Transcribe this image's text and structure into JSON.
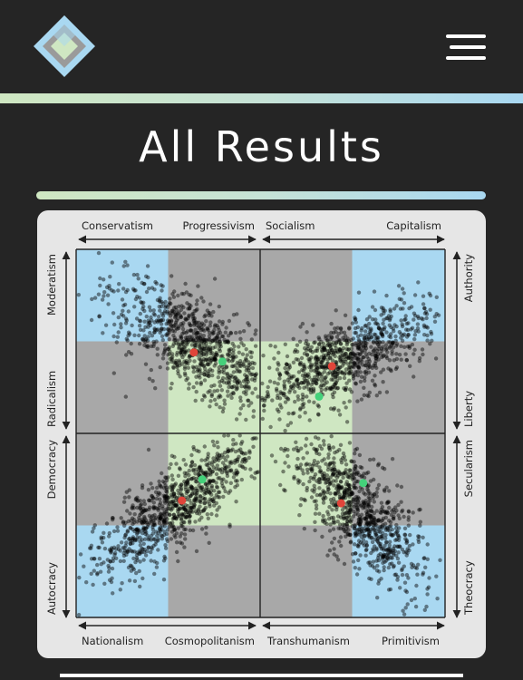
{
  "header": {
    "logo_icon": "diamond-logo-icon",
    "menu_icon": "hamburger-menu-icon"
  },
  "page": {
    "title": "All Results"
  },
  "colors": {
    "background": "#252525",
    "accent_green": "#cfe7c2",
    "accent_blue": "#a9d8f1",
    "quadrant_blue": "#a9d8f1",
    "quadrant_gray": "#a8a8a8",
    "quadrant_green": "#cfe7c2",
    "user_marker": "#e0453a",
    "average_marker": "#44d17a"
  },
  "chart": {
    "top_labels": [
      "Conservatism",
      "Progressivism",
      "Socialism",
      "Capitalism"
    ],
    "bottom_labels": [
      "Nationalism",
      "Cosmopolitanism",
      "Transhumanism",
      "Primitivism"
    ],
    "left_labels": [
      "Moderatism",
      "Radicalism",
      "Democracy",
      "Autocracy"
    ],
    "right_labels": [
      "Authority",
      "Liberty",
      "Secularism",
      "Theocracy"
    ]
  },
  "chart_data": [
    {
      "type": "scatter",
      "x_axis": [
        "Conservatism",
        "Progressivism"
      ],
      "y_axis": [
        "Moderatism",
        "Radicalism"
      ],
      "xlim": [
        -1,
        1
      ],
      "ylim": [
        -1,
        1
      ],
      "markers": [
        {
          "color": "red",
          "x": 0.28,
          "y": -0.12
        },
        {
          "color": "green",
          "x": 0.59,
          "y": -0.22
        }
      ]
    },
    {
      "type": "scatter",
      "x_axis": [
        "Socialism",
        "Capitalism"
      ],
      "y_axis": [
        "Liberty",
        "Authority"
      ],
      "xlim": [
        -1,
        1
      ],
      "ylim": [
        -1,
        1
      ],
      "markers": [
        {
          "color": "red",
          "x": -0.22,
          "y": -0.27
        },
        {
          "color": "green",
          "x": -0.36,
          "y": -0.6
        }
      ]
    },
    {
      "type": "scatter",
      "x_axis": [
        "Nationalism",
        "Cosmopolitanism"
      ],
      "y_axis": [
        "Autocracy",
        "Democracy"
      ],
      "xlim": [
        -1,
        1
      ],
      "ylim": [
        -1,
        1
      ],
      "markers": [
        {
          "color": "red",
          "x": 0.15,
          "y": 0.27
        },
        {
          "color": "green",
          "x": 0.37,
          "y": 0.5
        }
      ]
    },
    {
      "type": "scatter",
      "x_axis": [
        "Transhumanism",
        "Primitivism"
      ],
      "y_axis": [
        "Theocracy",
        "Secularism"
      ],
      "xlim": [
        -1,
        1
      ],
      "ylim": [
        -1,
        1
      ],
      "markers": [
        {
          "color": "red",
          "x": -0.12,
          "y": 0.24
        },
        {
          "color": "green",
          "x": 0.12,
          "y": 0.46
        }
      ]
    }
  ]
}
